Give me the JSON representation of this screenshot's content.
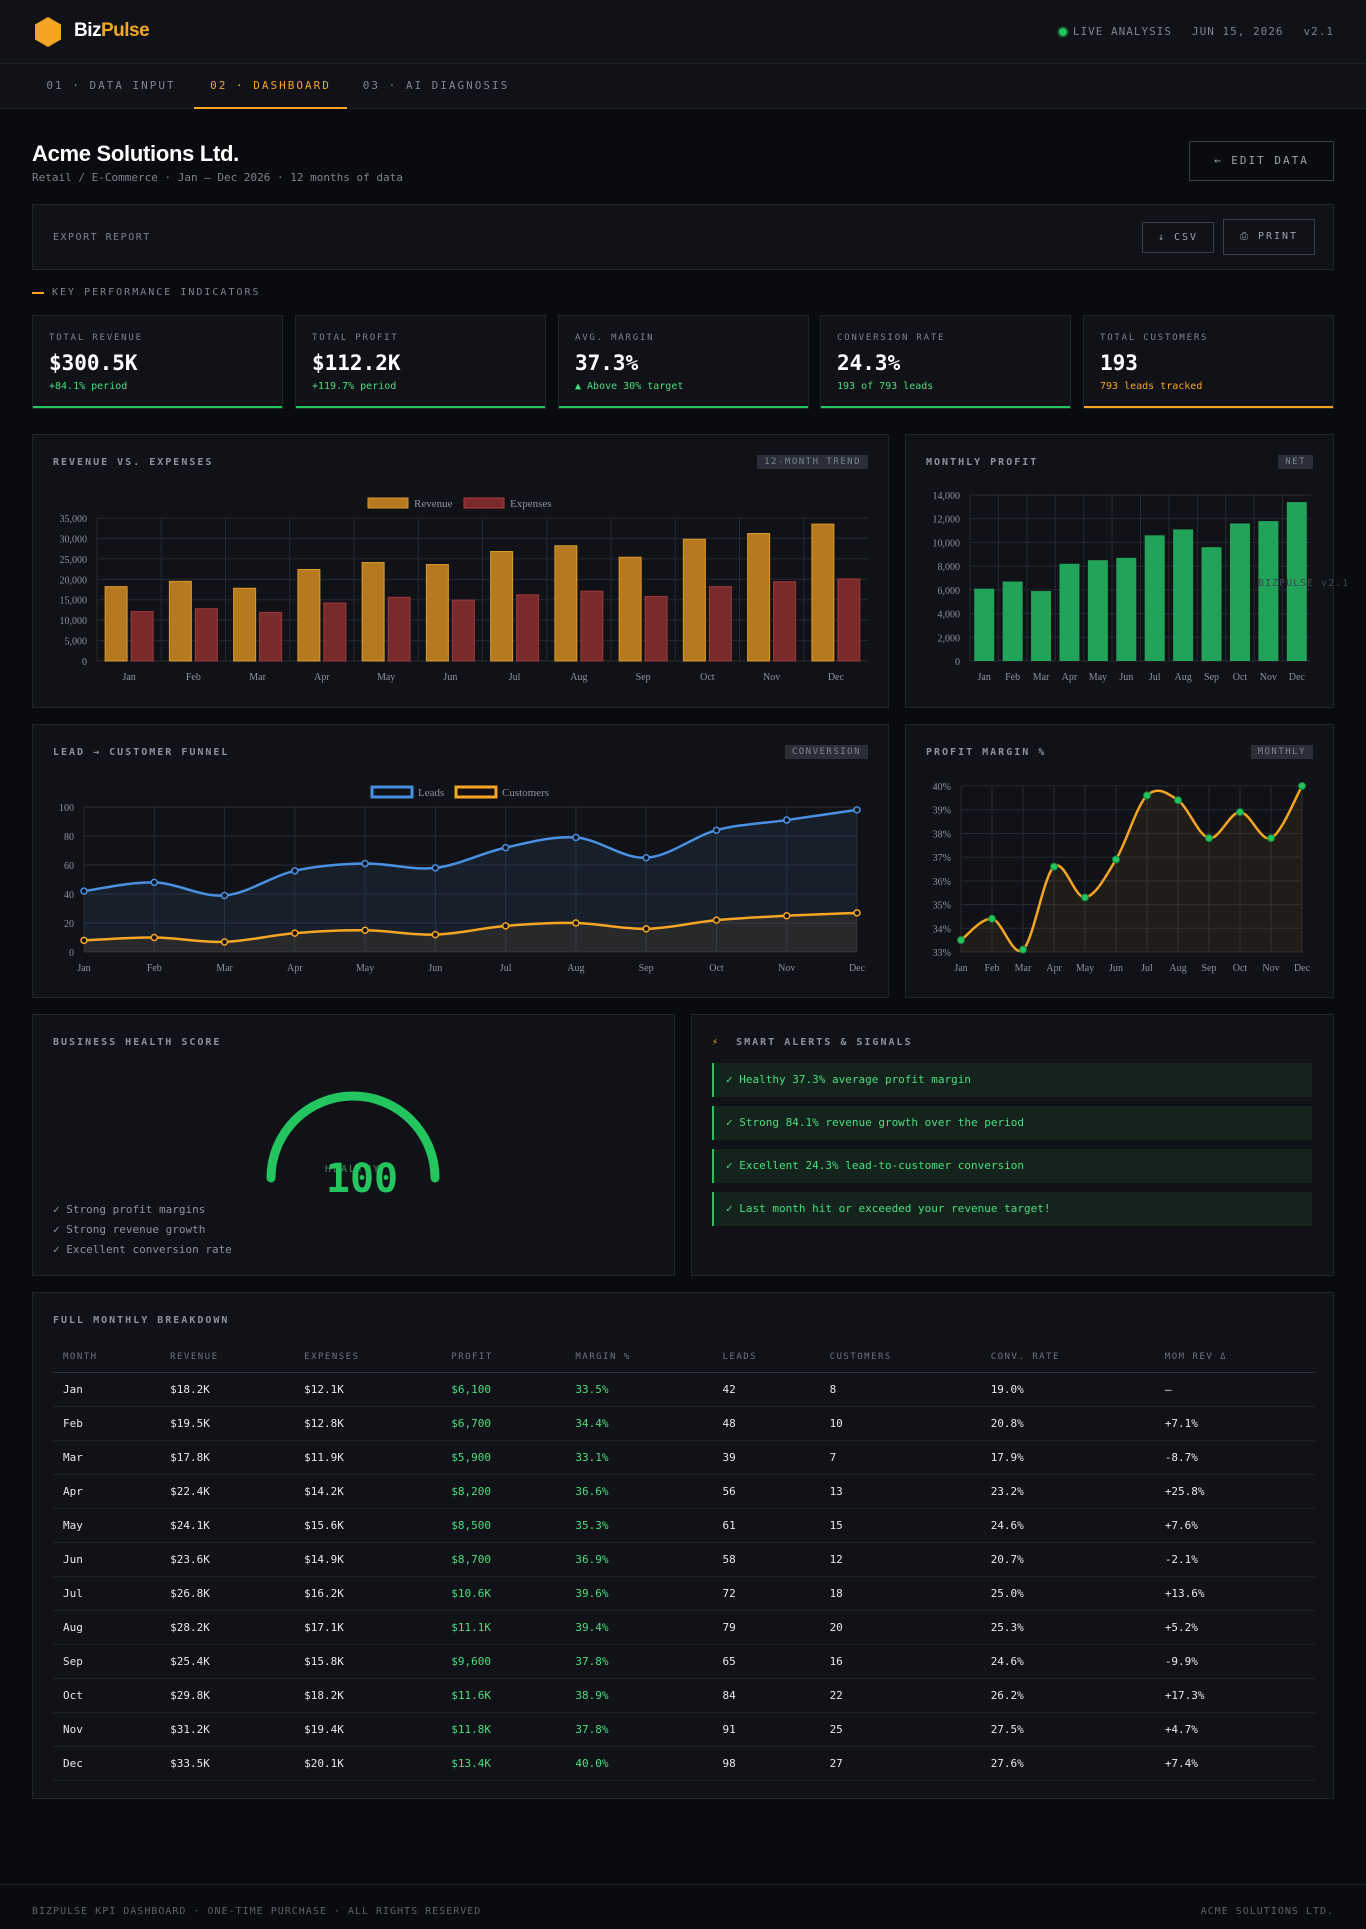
{
  "brand": {
    "part1": "Biz",
    "part2": "Pulse",
    "accent": "#f5a524"
  },
  "status": {
    "live": "LIVE ANALYSIS",
    "date": "JUN 15, 2026",
    "version": "v2.1"
  },
  "tabs": [
    {
      "label": "01 · DATA INPUT"
    },
    {
      "label": "02 · DASHBOARD",
      "active": true
    },
    {
      "label": "03 · AI DIAGNOSIS"
    }
  ],
  "company": {
    "name": "Acme Solutions Ltd.",
    "subtitle": "Retail / E-Commerce · Jan — Dec 2026 · 12 months of data"
  },
  "buttons": {
    "edit": "← EDIT DATA",
    "export_label": "EXPORT REPORT",
    "csv": "↓ CSV",
    "print": "⎙ PRINT"
  },
  "kpi_section": "KEY PERFORMANCE INDICATORS",
  "kpis": [
    {
      "label": "TOTAL REVENUE",
      "value": "$300.5K",
      "note": "+84.1% period",
      "color": "#22c55e"
    },
    {
      "label": "TOTAL PROFIT",
      "value": "$112.2K",
      "note": "+119.7% period",
      "color": "#22c55e"
    },
    {
      "label": "AVG. MARGIN",
      "value": "37.3%",
      "note": "▲ Above 30% target",
      "color": "#22c55e"
    },
    {
      "label": "CONVERSION RATE",
      "value": "24.3%",
      "note": "193 of 793 leads",
      "color": "#22c55e"
    },
    {
      "label": "TOTAL CUSTOMERS",
      "value": "193",
      "note": "793 leads tracked",
      "color": "#f5a524"
    }
  ],
  "panels": {
    "rev_exp": {
      "title": "REVENUE VS. EXPENSES",
      "tag": "12-MONTH TREND"
    },
    "profit": {
      "title": "MONTHLY PROFIT",
      "tag": "NET"
    },
    "funnel": {
      "title": "LEAD → CUSTOMER FUNNEL",
      "tag": "CONVERSION"
    },
    "margin": {
      "title": "PROFIT MARGIN %",
      "tag": "MONTHLY"
    },
    "health": {
      "title": "BUSINESS HEALTH SCORE",
      "score": "100",
      "label": "HEALTHY",
      "items": [
        "✓ Strong profit margins",
        "✓ Strong revenue growth",
        "✓ Excellent conversion rate"
      ]
    },
    "alerts": {
      "title": "SMART ALERTS & SIGNALS",
      "icon": "⚡",
      "items": [
        "✓  Healthy 37.3% average profit margin",
        "✓  Strong 84.1% revenue growth over the period",
        "✓  Excellent 24.3% lead-to-customer conversion",
        "✓  Last month hit or exceeded your revenue target!"
      ]
    },
    "table": {
      "title": "FULL MONTHLY BREAKDOWN"
    }
  },
  "watermark": "BIZPULSE v2.1",
  "chart_data": [
    {
      "type": "bar",
      "title": "REVENUE VS. EXPENSES",
      "categories": [
        "Jan",
        "Feb",
        "Mar",
        "Apr",
        "May",
        "Jun",
        "Jul",
        "Aug",
        "Sep",
        "Oct",
        "Nov",
        "Dec"
      ],
      "series": [
        {
          "name": "Revenue",
          "values": [
            18200,
            19500,
            17800,
            22400,
            24100,
            23600,
            26800,
            28200,
            25400,
            29800,
            31200,
            33500
          ],
          "color": "#b7791f"
        },
        {
          "name": "Expenses",
          "values": [
            12100,
            12800,
            11900,
            14200,
            15600,
            14900,
            16200,
            17100,
            15800,
            18200,
            19400,
            20100
          ],
          "color": "#7a2a2a"
        }
      ],
      "yticks": [
        0,
        5000,
        10000,
        15000,
        20000,
        25000,
        30000,
        35000
      ],
      "yticklabels": [
        "0",
        "5,000",
        "10,000",
        "15,000",
        "20,000",
        "25,000",
        "30,000",
        "35,000"
      ],
      "ylim": [
        0,
        35000
      ],
      "grid": true,
      "legend": "top-center"
    },
    {
      "type": "bar",
      "title": "MONTHLY PROFIT",
      "categories": [
        "Jan",
        "Feb",
        "Mar",
        "Apr",
        "May",
        "Jun",
        "Jul",
        "Aug",
        "Sep",
        "Oct",
        "Nov",
        "Dec"
      ],
      "series": [
        {
          "values": [
            6100,
            6700,
            5900,
            8200,
            8500,
            8700,
            10600,
            11100,
            9600,
            11600,
            11800,
            13400
          ],
          "color": "#22a35a"
        }
      ],
      "yticks": [
        0,
        2000,
        4000,
        6000,
        8000,
        10000,
        12000,
        14000
      ],
      "yticklabels": [
        "0",
        "2,000",
        "4,000",
        "6,000",
        "8,000",
        "10,000",
        "12,000",
        "14,000"
      ],
      "ylim": [
        0,
        14000
      ],
      "grid": true
    },
    {
      "type": "line",
      "title": "LEAD → CUSTOMER FUNNEL",
      "categories": [
        "Jan",
        "Feb",
        "Mar",
        "Apr",
        "May",
        "Jun",
        "Jul",
        "Aug",
        "Sep",
        "Oct",
        "Nov",
        "Dec"
      ],
      "series": [
        {
          "name": "Leads",
          "values": [
            42,
            48,
            39,
            56,
            61,
            58,
            72,
            79,
            65,
            84,
            91,
            98
          ],
          "color": "#4a90e2"
        },
        {
          "name": "Customers",
          "values": [
            8,
            10,
            7,
            13,
            15,
            12,
            18,
            20,
            16,
            22,
            25,
            27
          ],
          "color": "#f5a524"
        }
      ],
      "yticks": [
        0,
        20,
        40,
        60,
        80,
        100
      ],
      "yticklabels": [
        "0",
        "20",
        "40",
        "60",
        "80",
        "100"
      ],
      "ylim": [
        0,
        100
      ],
      "grid": true,
      "legend": "top-center"
    },
    {
      "type": "line",
      "title": "PROFIT MARGIN %",
      "categories": [
        "Jan",
        "Feb",
        "Mar",
        "Apr",
        "May",
        "Jun",
        "Jul",
        "Aug",
        "Sep",
        "Oct",
        "Nov",
        "Dec"
      ],
      "series": [
        {
          "values": [
            33.5,
            34.4,
            33.1,
            36.6,
            35.3,
            36.9,
            39.6,
            39.4,
            37.8,
            38.9,
            37.8,
            40.0
          ],
          "color": "#f5a524",
          "marker": "#22c55e"
        }
      ],
      "yticks": [
        33,
        34,
        35,
        36,
        37,
        38,
        39,
        40
      ],
      "yticklabels": [
        "33%",
        "34%",
        "35%",
        "36%",
        "37%",
        "38%",
        "39%",
        "40%"
      ],
      "ylim": [
        33,
        40
      ],
      "grid": true
    },
    {
      "type": "table",
      "title": "FULL MONTHLY BREAKDOWN",
      "columns": [
        "MONTH",
        "REVENUE",
        "EXPENSES",
        "PROFIT",
        "MARGIN %",
        "LEADS",
        "CUSTOMERS",
        "CONV. RATE",
        "MOM REV Δ"
      ],
      "rows": [
        [
          "Jan",
          "$18.2K",
          "$12.1K",
          "$6,100",
          "33.5%",
          "42",
          "8",
          "19.0%",
          "—"
        ],
        [
          "Feb",
          "$19.5K",
          "$12.8K",
          "$6,700",
          "34.4%",
          "48",
          "10",
          "20.8%",
          "+7.1%"
        ],
        [
          "Mar",
          "$17.8K",
          "$11.9K",
          "$5,900",
          "33.1%",
          "39",
          "7",
          "17.9%",
          "-8.7%"
        ],
        [
          "Apr",
          "$22.4K",
          "$14.2K",
          "$8,200",
          "36.6%",
          "56",
          "13",
          "23.2%",
          "+25.8%"
        ],
        [
          "May",
          "$24.1K",
          "$15.6K",
          "$8,500",
          "35.3%",
          "61",
          "15",
          "24.6%",
          "+7.6%"
        ],
        [
          "Jun",
          "$23.6K",
          "$14.9K",
          "$8,700",
          "36.9%",
          "58",
          "12",
          "20.7%",
          "-2.1%"
        ],
        [
          "Jul",
          "$26.8K",
          "$16.2K",
          "$10.6K",
          "39.6%",
          "72",
          "18",
          "25.0%",
          "+13.6%"
        ],
        [
          "Aug",
          "$28.2K",
          "$17.1K",
          "$11.1K",
          "39.4%",
          "79",
          "20",
          "25.3%",
          "+5.2%"
        ],
        [
          "Sep",
          "$25.4K",
          "$15.8K",
          "$9,600",
          "37.8%",
          "65",
          "16",
          "24.6%",
          "-9.9%"
        ],
        [
          "Oct",
          "$29.8K",
          "$18.2K",
          "$11.6K",
          "38.9%",
          "84",
          "22",
          "26.2%",
          "+17.3%"
        ],
        [
          "Nov",
          "$31.2K",
          "$19.4K",
          "$11.8K",
          "37.8%",
          "91",
          "25",
          "27.5%",
          "+4.7%"
        ],
        [
          "Dec",
          "$33.5K",
          "$20.1K",
          "$13.4K",
          "40.0%",
          "98",
          "27",
          "27.6%",
          "+7.4%"
        ]
      ]
    }
  ],
  "footer": {
    "left": "BIZPULSE KPI DASHBOARD · ONE-TIME PURCHASE · ALL RIGHTS RESERVED",
    "right": "ACME SOLUTIONS LTD."
  }
}
